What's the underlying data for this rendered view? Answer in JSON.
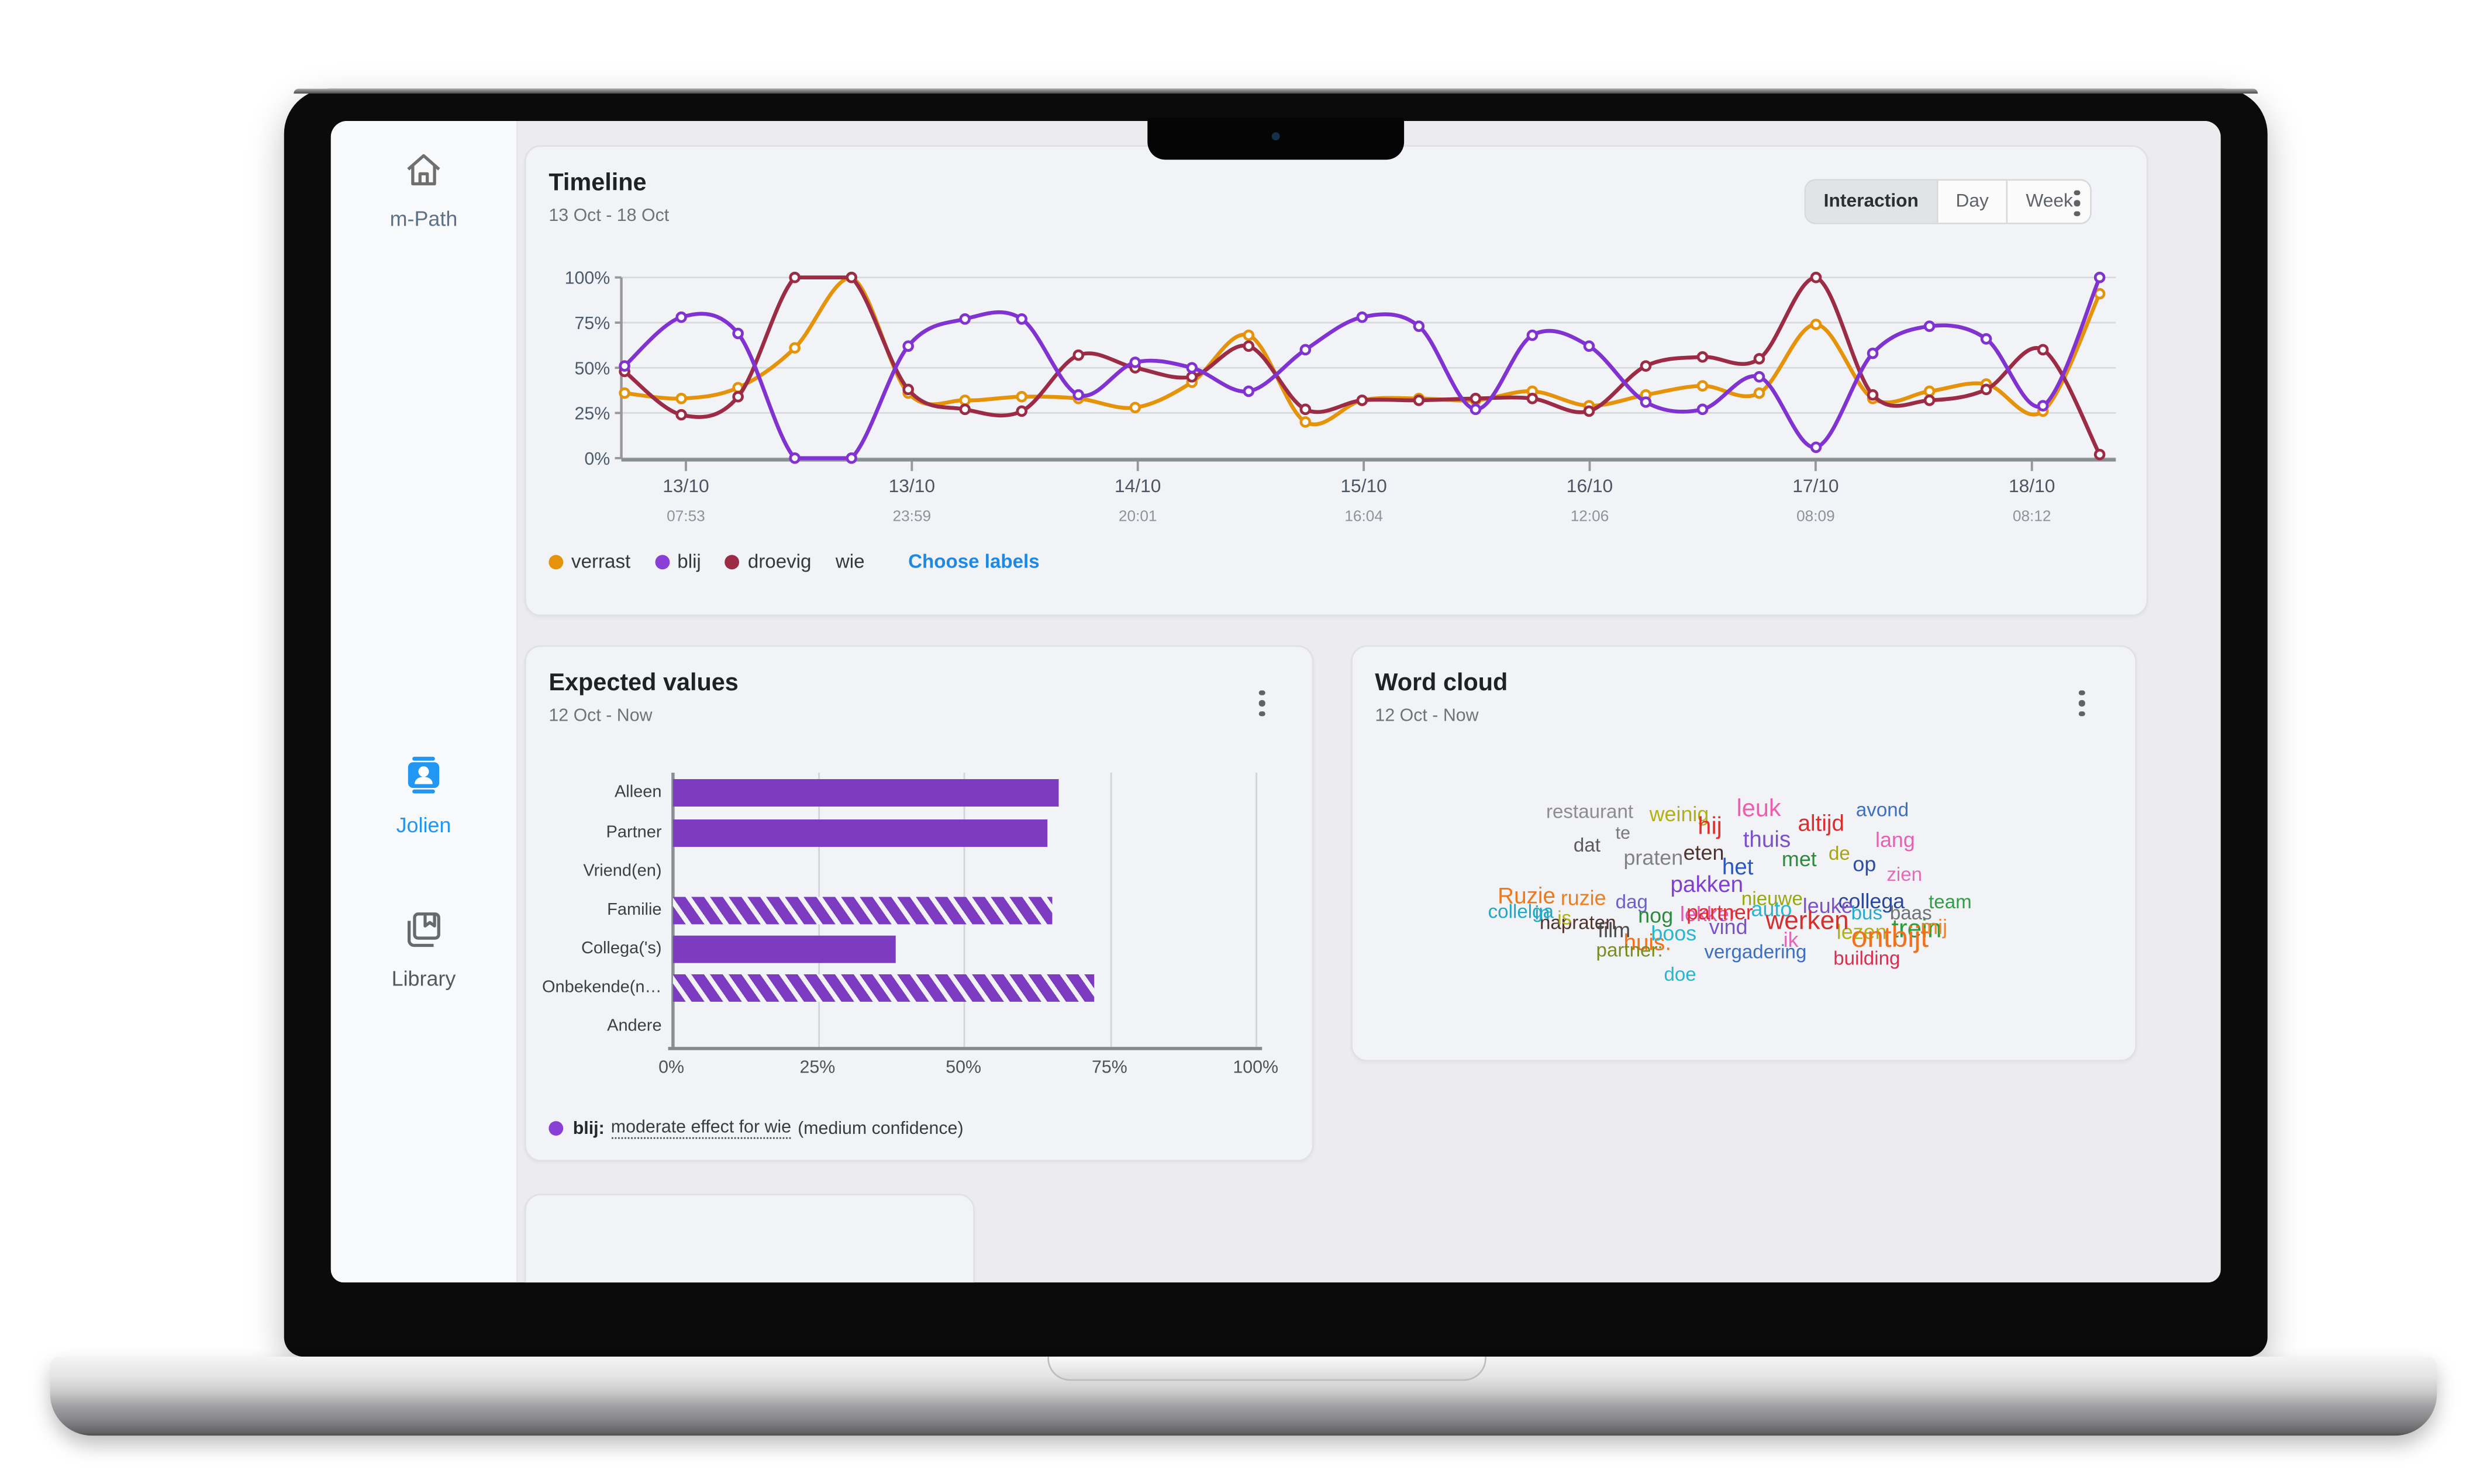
{
  "colors": {
    "accent_blue": "#2196F3",
    "verrast": "#E6930C",
    "blij": "#8133D1",
    "droevig": "#9C2B45",
    "bar_purple": "#7D3BC2",
    "card_bg": "#F2F3F6",
    "main_bg": "#ECECEE",
    "sidebar_bg": "#F8F9FB"
  },
  "sidebar": {
    "brand": {
      "label": "m-Path",
      "icon": "home-icon"
    },
    "items": [
      {
        "label": "Jolien",
        "icon": "contact-card-icon",
        "active": true
      },
      {
        "label": "Library",
        "icon": "library-icon",
        "active": false
      }
    ]
  },
  "timeline_card": {
    "title": "Timeline",
    "date_range": "13 Oct - 18 Oct",
    "views": [
      "Interaction",
      "Day",
      "Week"
    ],
    "selected_view": "Interaction",
    "choose_labels_label": "Choose labels",
    "legend": [
      {
        "label": "verrast",
        "color": "#E6930C"
      },
      {
        "label": "blij",
        "color": "#8A3FD6"
      },
      {
        "label": "droevig",
        "color": "#9C2B45"
      },
      {
        "label": "wie",
        "color": null
      }
    ]
  },
  "expected_card": {
    "title": "Expected values",
    "date_range": "12 Oct - Now",
    "legend": {
      "dot_color": "#8A3FD6",
      "series": "blij:",
      "effect": "moderate effect for wie",
      "confidence": "(medium confidence)"
    }
  },
  "wordcloud_card": {
    "title": "Word cloud",
    "date_range": "12 Oct - Now"
  },
  "chart_data": [
    {
      "id": "timeline",
      "type": "line",
      "title": "Timeline",
      "ylim": [
        0,
        100
      ],
      "y_ticks": [
        "100%",
        "75%",
        "50%",
        "25%",
        "0%"
      ],
      "grid": "horizontal",
      "legend_position": "bottom",
      "x_ticks": [
        {
          "date": "13/10",
          "time": "07:53"
        },
        {
          "date": "13/10",
          "time": "23:59"
        },
        {
          "date": "14/10",
          "time": "20:01"
        },
        {
          "date": "15/10",
          "time": "16:04"
        },
        {
          "date": "16/10",
          "time": "12:06"
        },
        {
          "date": "17/10",
          "time": "08:09"
        },
        {
          "date": "18/10",
          "time": "08:12"
        }
      ],
      "series": [
        {
          "name": "verrast",
          "color": "#E6930C",
          "values": [
            36,
            33,
            39,
            61,
            100,
            36,
            32,
            34,
            33,
            28,
            42,
            68,
            20,
            32,
            33,
            32,
            37,
            29,
            35,
            40,
            36,
            74,
            33,
            37,
            41,
            26,
            91
          ]
        },
        {
          "name": "blij",
          "color": "#8133D1",
          "values": [
            51,
            78,
            69,
            0,
            0,
            62,
            77,
            77,
            35,
            53,
            50,
            37,
            60,
            78,
            73,
            27,
            68,
            62,
            31,
            27,
            45,
            6,
            58,
            73,
            66,
            29,
            100
          ]
        },
        {
          "name": "droevig",
          "color": "#9C2B45",
          "values": [
            48,
            24,
            34,
            100,
            100,
            38,
            27,
            26,
            57,
            50,
            45,
            62,
            27,
            32,
            32,
            33,
            33,
            26,
            51,
            56,
            55,
            100,
            35,
            32,
            38,
            60,
            2
          ]
        }
      ]
    },
    {
      "id": "expected_values",
      "type": "bar",
      "orientation": "horizontal",
      "title": "Expected values",
      "color": "#7D3BC2",
      "categories": [
        "Alleen",
        "Partner",
        "Vriend(en)",
        "Familie",
        "Collega('s)",
        "Onbekende(n…",
        "Andere"
      ],
      "values": [
        66,
        64,
        0,
        65,
        38,
        72,
        0
      ],
      "hatched": [
        false,
        false,
        false,
        true,
        false,
        true,
        false
      ],
      "x_ticks": [
        "0%",
        "25%",
        "50%",
        "75%",
        "100%"
      ],
      "xlim": [
        0,
        100
      ],
      "grid": "vertical"
    },
    {
      "id": "word_cloud",
      "type": "wordcloud",
      "title": "Word cloud",
      "words": [
        {
          "t": "restaurant",
          "x": 120,
          "y": 96,
          "s": 12,
          "c": "#8d8d8d"
        },
        {
          "t": "weinig",
          "x": 184,
          "y": 97,
          "s": 13,
          "c": "#b1b113"
        },
        {
          "t": "hij",
          "x": 214,
          "y": 104,
          "s": 15,
          "c": "#e03030"
        },
        {
          "t": "leuk",
          "x": 238,
          "y": 93,
          "s": 15,
          "c": "#ed5fae"
        },
        {
          "t": "altijd",
          "x": 276,
          "y": 102,
          "s": 14,
          "c": "#d92f2f"
        },
        {
          "t": "avond",
          "x": 312,
          "y": 95,
          "s": 12,
          "c": "#3b6fc4"
        },
        {
          "t": "dat",
          "x": 137,
          "y": 117,
          "s": 12,
          "c": "#5b5b5b"
        },
        {
          "t": "te",
          "x": 163,
          "y": 111,
          "s": 11,
          "c": "#7a7a7a"
        },
        {
          "t": "praten",
          "x": 168,
          "y": 124,
          "s": 13,
          "c": "#828282"
        },
        {
          "t": "eten",
          "x": 205,
          "y": 121,
          "s": 13,
          "c": "#4e342e"
        },
        {
          "t": "thuis",
          "x": 242,
          "y": 112,
          "s": 14,
          "c": "#7b52cc"
        },
        {
          "t": "het",
          "x": 229,
          "y": 129,
          "s": 14,
          "c": "#2b56c6"
        },
        {
          "t": "met",
          "x": 266,
          "y": 125,
          "s": 13,
          "c": "#2e8b3d"
        },
        {
          "t": "de",
          "x": 295,
          "y": 122,
          "s": 12,
          "c": "#a8a416"
        },
        {
          "t": "op",
          "x": 310,
          "y": 128,
          "s": 13,
          "c": "#2b4ea6"
        },
        {
          "t": "lang",
          "x": 324,
          "y": 113,
          "s": 13,
          "c": "#ea5fb4"
        },
        {
          "t": "zien",
          "x": 331,
          "y": 135,
          "s": 12,
          "c": "#e56db8"
        },
        {
          "t": "Ruzie",
          "x": 90,
          "y": 147,
          "s": 14,
          "c": "#f07818"
        },
        {
          "t": "ruzie",
          "x": 129,
          "y": 149,
          "s": 13,
          "c": "#ef7d1a"
        },
        {
          "t": "dag",
          "x": 163,
          "y": 152,
          "s": 12,
          "c": "#6a62c8"
        },
        {
          "t": "pakken",
          "x": 197,
          "y": 140,
          "s": 14,
          "c": "#7f3fd1"
        },
        {
          "t": "lekker",
          "x": 203,
          "y": 159,
          "s": 13,
          "c": "#e255b2"
        },
        {
          "t": "nieuwe",
          "x": 241,
          "y": 150,
          "s": 12,
          "c": "#9aa80f"
        },
        {
          "t": "collega",
          "x": 301,
          "y": 151,
          "s": 13,
          "c": "#27489c"
        },
        {
          "t": "team",
          "x": 357,
          "y": 152,
          "s": 12,
          "c": "#2f9e44"
        },
        {
          "t": "napraten",
          "x": 116,
          "y": 165,
          "s": 12,
          "c": "#4e342e"
        },
        {
          "t": "collelga",
          "x": 84,
          "y": 158,
          "s": 12,
          "c": "#21a8c4"
        },
        {
          "t": "in",
          "x": 113,
          "y": 159,
          "s": 12,
          "c": "#21a8c4"
        },
        {
          "t": "is",
          "x": 127,
          "y": 162,
          "s": 12,
          "c": "#b1b113"
        },
        {
          "t": "huis.",
          "x": 168,
          "y": 176,
          "s": 14,
          "c": "#f2711c"
        },
        {
          "t": "lezen",
          "x": 300,
          "y": 170,
          "s": 13,
          "c": "#b1b113"
        },
        {
          "t": "trein",
          "x": 334,
          "y": 168,
          "s": 16,
          "c": "#2d9c3c"
        },
        {
          "t": "nog",
          "x": 177,
          "y": 160,
          "s": 13,
          "c": "#2e8b3d"
        },
        {
          "t": "partner",
          "x": 207,
          "y": 158,
          "s": 13,
          "c": "#d92f2f"
        },
        {
          "t": "auto",
          "x": 247,
          "y": 156,
          "s": 13,
          "c": "#29b6cf"
        },
        {
          "t": "leuke",
          "x": 279,
          "y": 154,
          "s": 13,
          "c": "#7b52cc"
        },
        {
          "t": "bus",
          "x": 309,
          "y": 159,
          "s": 12,
          "c": "#29a8cf"
        },
        {
          "t": "baas",
          "x": 333,
          "y": 159,
          "s": 12,
          "c": "#6f7276"
        },
        {
          "t": "film",
          "x": 152,
          "y": 169,
          "s": 13,
          "c": "#4a4a4a"
        },
        {
          "t": "boos",
          "x": 185,
          "y": 171,
          "s": 13,
          "c": "#29b6cf"
        },
        {
          "t": "vind",
          "x": 221,
          "y": 167,
          "s": 13,
          "c": "#7b52cc"
        },
        {
          "t": "werken",
          "x": 256,
          "y": 163,
          "s": 16,
          "c": "#d32f2f"
        },
        {
          "t": "ik",
          "x": 267,
          "y": 175,
          "s": 13,
          "c": "#e06ab8"
        },
        {
          "t": "mij",
          "x": 352,
          "y": 167,
          "s": 13,
          "c": "#f08426"
        },
        {
          "t": "partner:",
          "x": 151,
          "y": 182,
          "s": 12,
          "c": "#7a8c1e"
        },
        {
          "t": "vergadering",
          "x": 218,
          "y": 183,
          "s": 12,
          "c": "#3b6fc4"
        },
        {
          "t": "ontbijt",
          "x": 309,
          "y": 171,
          "s": 18,
          "c": "#f2711c"
        },
        {
          "t": "building",
          "x": 298,
          "y": 187,
          "s": 12,
          "c": "#d63050"
        },
        {
          "t": "doe",
          "x": 193,
          "y": 197,
          "s": 12,
          "c": "#29b6cf"
        }
      ]
    }
  ]
}
